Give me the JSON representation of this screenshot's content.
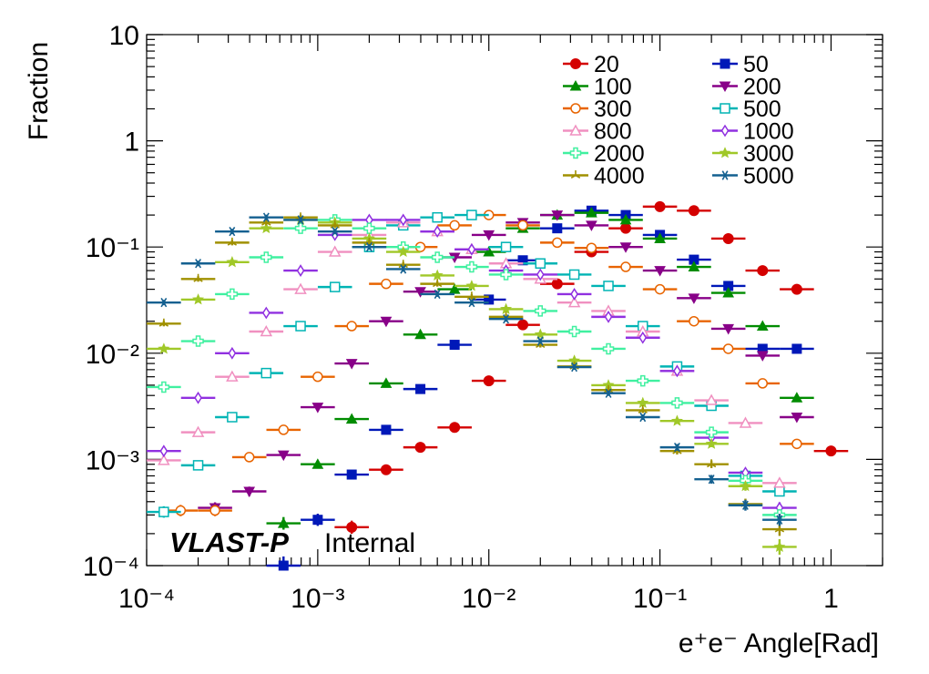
{
  "chart_data": {
    "type": "scatter",
    "title": "",
    "xlabel": "e⁺e⁻ Angle[Rad]",
    "ylabel": "Fraction",
    "xscale": "log",
    "yscale": "log",
    "xlim": [
      0.0001,
      2
    ],
    "ylim": [
      0.0001,
      10
    ],
    "x_ticks": [
      "10⁻⁴",
      "10⁻³",
      "10⁻²",
      "10⁻¹",
      "1"
    ],
    "y_ticks": [
      "10⁻⁴",
      "10⁻³",
      "10⁻²",
      "10⁻¹",
      "1",
      "10"
    ],
    "annotation": {
      "experiment": "VLAST-P",
      "status": "Internal"
    },
    "legend_position": "top-right",
    "series": [
      {
        "name": "20",
        "color": "#d40000",
        "marker": "circle",
        "x": [
          0.00158,
          0.00251,
          0.00398,
          0.00631,
          0.01,
          0.0158,
          0.0251,
          0.0398,
          0.0631,
          0.1,
          0.158,
          0.251,
          0.398,
          0.631,
          1.0
        ],
        "y": [
          0.00023,
          0.0008,
          0.0013,
          0.002,
          0.0055,
          0.0185,
          0.045,
          0.09,
          0.15,
          0.24,
          0.22,
          0.12,
          0.06,
          0.04,
          0.0012
        ]
      },
      {
        "name": "50",
        "color": "#0018b8",
        "marker": "square",
        "x": [
          0.000631,
          0.001,
          0.00158,
          0.00251,
          0.00398,
          0.00631,
          0.01,
          0.0158,
          0.0251,
          0.0398,
          0.0631,
          0.1,
          0.158,
          0.251,
          0.398,
          0.631
        ],
        "y": [
          0.0001,
          0.00027,
          0.00072,
          0.0019,
          0.0046,
          0.012,
          0.032,
          0.075,
          0.15,
          0.22,
          0.2,
          0.13,
          0.076,
          0.043,
          0.011,
          0.011
        ]
      },
      {
        "name": "100",
        "color": "#008c00",
        "marker": "triangle-up",
        "x": [
          0.000631,
          0.001,
          0.00158,
          0.00251,
          0.00398,
          0.00631,
          0.01,
          0.0158,
          0.0251,
          0.0398,
          0.0631,
          0.1,
          0.158,
          0.251,
          0.398,
          0.631
        ],
        "y": [
          0.00025,
          0.0009,
          0.0024,
          0.0052,
          0.015,
          0.04,
          0.09,
          0.15,
          0.2,
          0.21,
          0.18,
          0.12,
          0.065,
          0.037,
          0.018,
          0.0038
        ]
      },
      {
        "name": "200",
        "color": "#880088",
        "marker": "triangle-down",
        "x": [
          0.000251,
          0.000398,
          0.000631,
          0.001,
          0.00158,
          0.00251,
          0.00398,
          0.00631,
          0.01,
          0.0158,
          0.0251,
          0.0398,
          0.0631,
          0.1,
          0.158,
          0.251,
          0.398,
          0.631
        ],
        "y": [
          0.00035,
          0.0005,
          0.0011,
          0.0031,
          0.008,
          0.02,
          0.038,
          0.08,
          0.13,
          0.17,
          0.2,
          0.16,
          0.1,
          0.06,
          0.033,
          0.017,
          0.0095,
          0.0025
        ]
      },
      {
        "name": "300",
        "color": "#e86400",
        "marker": "open-circle",
        "x": [
          0.000158,
          0.000251,
          0.000398,
          0.000631,
          0.001,
          0.00158,
          0.00251,
          0.00398,
          0.00631,
          0.01,
          0.0158,
          0.0251,
          0.0398,
          0.0631,
          0.1,
          0.158,
          0.251,
          0.398,
          0.631
        ],
        "y": [
          0.00033,
          0.00033,
          0.00105,
          0.0019,
          0.006,
          0.018,
          0.045,
          0.1,
          0.16,
          0.2,
          0.16,
          0.11,
          0.098,
          0.065,
          0.04,
          0.02,
          0.011,
          0.0052,
          0.0014
        ]
      },
      {
        "name": "500",
        "color": "#00b4b4",
        "marker": "open-square",
        "x": [
          0.000126,
          0.0002,
          0.000316,
          0.0005,
          0.000794,
          0.00126,
          0.002,
          0.00316,
          0.005,
          0.00794,
          0.0126,
          0.02,
          0.0316,
          0.05,
          0.0794,
          0.126,
          0.2,
          0.316,
          0.5
        ],
        "y": [
          0.00032,
          0.00088,
          0.0025,
          0.0065,
          0.018,
          0.042,
          0.1,
          0.16,
          0.19,
          0.2,
          0.1,
          0.07,
          0.055,
          0.043,
          0.018,
          0.0075,
          0.0032,
          0.0007,
          0.0005
        ]
      },
      {
        "name": "800",
        "color": "#f090c0",
        "marker": "open-triangle-up",
        "x": [
          0.000126,
          0.0002,
          0.000316,
          0.0005,
          0.000794,
          0.00126,
          0.002,
          0.00316,
          0.005,
          0.00794,
          0.0126,
          0.02,
          0.0316,
          0.05,
          0.0794,
          0.126,
          0.2,
          0.316,
          0.5
        ],
        "y": [
          0.00098,
          0.0018,
          0.006,
          0.016,
          0.04,
          0.09,
          0.13,
          0.17,
          0.14,
          0.095,
          0.07,
          0.05,
          0.03,
          0.025,
          0.016,
          0.0068,
          0.0036,
          0.0022,
          0.0006
        ]
      },
      {
        "name": "1000",
        "color": "#9030e0",
        "marker": "open-diamond",
        "x": [
          0.000126,
          0.0002,
          0.000316,
          0.0005,
          0.000794,
          0.00126,
          0.002,
          0.00316,
          0.005,
          0.00794,
          0.0126,
          0.02,
          0.0316,
          0.05,
          0.0794,
          0.126,
          0.2,
          0.316,
          0.5
        ],
        "y": [
          0.0012,
          0.0038,
          0.01,
          0.024,
          0.06,
          0.13,
          0.18,
          0.18,
          0.14,
          0.095,
          0.06,
          0.055,
          0.036,
          0.022,
          0.014,
          0.0068,
          0.0016,
          0.00075,
          0.00035
        ]
      },
      {
        "name": "2000",
        "color": "#40f0a0",
        "marker": "open-cross",
        "x": [
          0.000126,
          0.0002,
          0.000316,
          0.0005,
          0.000794,
          0.00126,
          0.002,
          0.00316,
          0.005,
          0.00794,
          0.0126,
          0.02,
          0.0316,
          0.05,
          0.0794,
          0.126,
          0.2,
          0.316,
          0.5
        ],
        "y": [
          0.0048,
          0.013,
          0.036,
          0.08,
          0.15,
          0.18,
          0.15,
          0.1,
          0.08,
          0.065,
          0.055,
          0.025,
          0.016,
          0.011,
          0.0055,
          0.0034,
          0.0018,
          0.00063,
          0.0003
        ]
      },
      {
        "name": "3000",
        "color": "#a0c828",
        "marker": "star",
        "x": [
          0.000126,
          0.0002,
          0.000316,
          0.0005,
          0.000794,
          0.00126,
          0.002,
          0.00316,
          0.005,
          0.00794,
          0.0126,
          0.02,
          0.0316,
          0.05,
          0.0794,
          0.126,
          0.2,
          0.316,
          0.5
        ],
        "y": [
          0.011,
          0.032,
          0.072,
          0.15,
          0.18,
          0.17,
          0.12,
          0.09,
          0.054,
          0.043,
          0.026,
          0.015,
          0.0085,
          0.005,
          0.0034,
          0.0023,
          0.0014,
          0.00056,
          0.00015
        ]
      },
      {
        "name": "4000",
        "color": "#a09000",
        "marker": "tri-star",
        "x": [
          0.000126,
          0.0002,
          0.000316,
          0.0005,
          0.000794,
          0.00126,
          0.002,
          0.00316,
          0.005,
          0.00794,
          0.0126,
          0.02,
          0.0316,
          0.05,
          0.0794,
          0.126,
          0.2,
          0.316,
          0.5
        ],
        "y": [
          0.019,
          0.05,
          0.11,
          0.17,
          0.19,
          0.16,
          0.11,
          0.068,
          0.045,
          0.034,
          0.022,
          0.012,
          0.0075,
          0.0045,
          0.0029,
          0.0012,
          0.0009,
          0.00038,
          0.00022
        ]
      },
      {
        "name": "5000",
        "color": "#146090",
        "marker": "asterisk",
        "x": [
          0.000126,
          0.0002,
          0.000316,
          0.0005,
          0.000794,
          0.00126,
          0.002,
          0.00316,
          0.005,
          0.00794,
          0.0126,
          0.02,
          0.0316,
          0.05,
          0.0794,
          0.126,
          0.2,
          0.316,
          0.5
        ],
        "y": [
          0.03,
          0.07,
          0.14,
          0.19,
          0.18,
          0.14,
          0.1,
          0.062,
          0.036,
          0.03,
          0.021,
          0.013,
          0.0074,
          0.0042,
          0.0025,
          0.0013,
          0.00065,
          0.00037,
          0.00027
        ]
      }
    ]
  }
}
